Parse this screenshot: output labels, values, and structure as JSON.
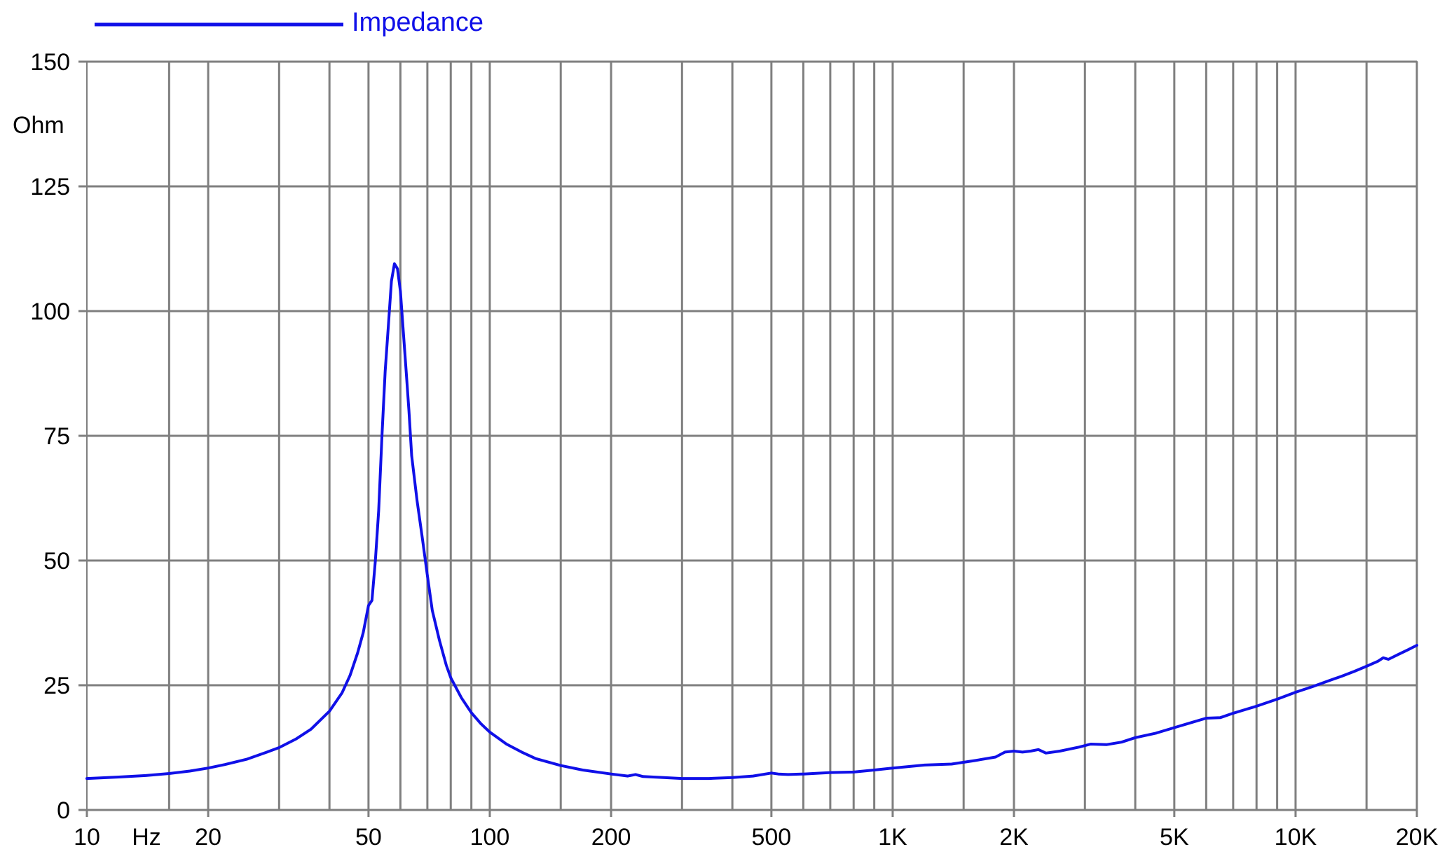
{
  "chart_data": {
    "type": "line",
    "title": "",
    "xlabel": "Hz",
    "ylabel": "Ohm",
    "xscale": "log",
    "xlim": [
      10,
      20000
    ],
    "ylim": [
      0,
      150
    ],
    "grid": true,
    "legend_placement": "top-left",
    "x_tick_labels": [
      {
        "v": 10,
        "label": "10"
      },
      {
        "v": 20,
        "label": "20"
      },
      {
        "v": 50,
        "label": "50"
      },
      {
        "v": 100,
        "label": "100"
      },
      {
        "v": 200,
        "label": "200"
      },
      {
        "v": 500,
        "label": "500"
      },
      {
        "v": 1000,
        "label": "1K"
      },
      {
        "v": 2000,
        "label": "2K"
      },
      {
        "v": 5000,
        "label": "5K"
      },
      {
        "v": 10000,
        "label": "10K"
      },
      {
        "v": 20000,
        "label": "20K"
      }
    ],
    "x_gridlines": [
      16,
      20,
      30,
      40,
      50,
      60,
      70,
      80,
      90,
      100,
      150,
      200,
      300,
      400,
      500,
      600,
      700,
      800,
      900,
      1000,
      1500,
      2000,
      3000,
      4000,
      5000,
      6000,
      7000,
      8000,
      9000,
      10000,
      15000,
      20000
    ],
    "y_ticks": [
      0,
      25,
      50,
      75,
      100,
      125,
      150
    ],
    "series": [
      {
        "name": "Impedance",
        "color": "#1010e8",
        "points": [
          [
            10,
            6.3
          ],
          [
            12,
            6.6
          ],
          [
            14,
            6.9
          ],
          [
            16,
            7.3
          ],
          [
            18,
            7.8
          ],
          [
            20,
            8.4
          ],
          [
            22,
            9.1
          ],
          [
            25,
            10.2
          ],
          [
            28,
            11.6
          ],
          [
            30,
            12.5
          ],
          [
            33,
            14.2
          ],
          [
            36,
            16.2
          ],
          [
            40,
            19.8
          ],
          [
            43,
            23.5
          ],
          [
            45,
            27.0
          ],
          [
            47,
            31.5
          ],
          [
            48.5,
            35.5
          ],
          [
            50,
            41.0
          ],
          [
            51,
            42.0
          ],
          [
            52,
            50.0
          ],
          [
            53,
            60.0
          ],
          [
            54,
            75.0
          ],
          [
            55,
            88.0
          ],
          [
            56,
            97.0
          ],
          [
            57,
            106.0
          ],
          [
            58,
            109.5
          ],
          [
            59,
            108.5
          ],
          [
            60,
            104.0
          ],
          [
            61,
            96.0
          ],
          [
            62,
            88.0
          ],
          [
            63,
            80.0
          ],
          [
            64,
            71.0
          ],
          [
            66,
            62.0
          ],
          [
            68,
            54.5
          ],
          [
            70,
            47.0
          ],
          [
            72,
            40.0
          ],
          [
            75,
            34.0
          ],
          [
            78,
            29.0
          ],
          [
            80,
            26.5
          ],
          [
            85,
            22.5
          ],
          [
            90,
            19.5
          ],
          [
            95,
            17.3
          ],
          [
            100,
            15.6
          ],
          [
            110,
            13.2
          ],
          [
            120,
            11.6
          ],
          [
            130,
            10.3
          ],
          [
            150,
            8.9
          ],
          [
            170,
            8.0
          ],
          [
            200,
            7.2
          ],
          [
            220,
            6.8
          ],
          [
            230,
            7.1
          ],
          [
            240,
            6.7
          ],
          [
            270,
            6.5
          ],
          [
            300,
            6.3
          ],
          [
            350,
            6.3
          ],
          [
            400,
            6.5
          ],
          [
            450,
            6.8
          ],
          [
            500,
            7.4
          ],
          [
            520,
            7.2
          ],
          [
            550,
            7.1
          ],
          [
            600,
            7.2
          ],
          [
            700,
            7.5
          ],
          [
            800,
            7.6
          ],
          [
            900,
            8.0
          ],
          [
            1000,
            8.4
          ],
          [
            1200,
            9.0
          ],
          [
            1400,
            9.2
          ],
          [
            1600,
            9.9
          ],
          [
            1800,
            10.6
          ],
          [
            1900,
            11.6
          ],
          [
            2000,
            11.8
          ],
          [
            2100,
            11.6
          ],
          [
            2200,
            11.8
          ],
          [
            2300,
            12.1
          ],
          [
            2400,
            11.4
          ],
          [
            2600,
            11.8
          ],
          [
            2900,
            12.6
          ],
          [
            3100,
            13.2
          ],
          [
            3400,
            13.1
          ],
          [
            3700,
            13.6
          ],
          [
            4000,
            14.5
          ],
          [
            4500,
            15.4
          ],
          [
            5000,
            16.5
          ],
          [
            5500,
            17.5
          ],
          [
            6000,
            18.4
          ],
          [
            6500,
            18.5
          ],
          [
            7000,
            19.4
          ],
          [
            8000,
            20.8
          ],
          [
            9000,
            22.2
          ],
          [
            10000,
            23.6
          ],
          [
            11000,
            24.7
          ],
          [
            12000,
            25.8
          ],
          [
            13000,
            26.8
          ],
          [
            14000,
            27.8
          ],
          [
            15000,
            28.8
          ],
          [
            16000,
            29.8
          ],
          [
            16500,
            30.5
          ],
          [
            17000,
            30.2
          ],
          [
            18000,
            31.2
          ],
          [
            19000,
            32.1
          ],
          [
            20000,
            33.0
          ]
        ]
      }
    ]
  }
}
